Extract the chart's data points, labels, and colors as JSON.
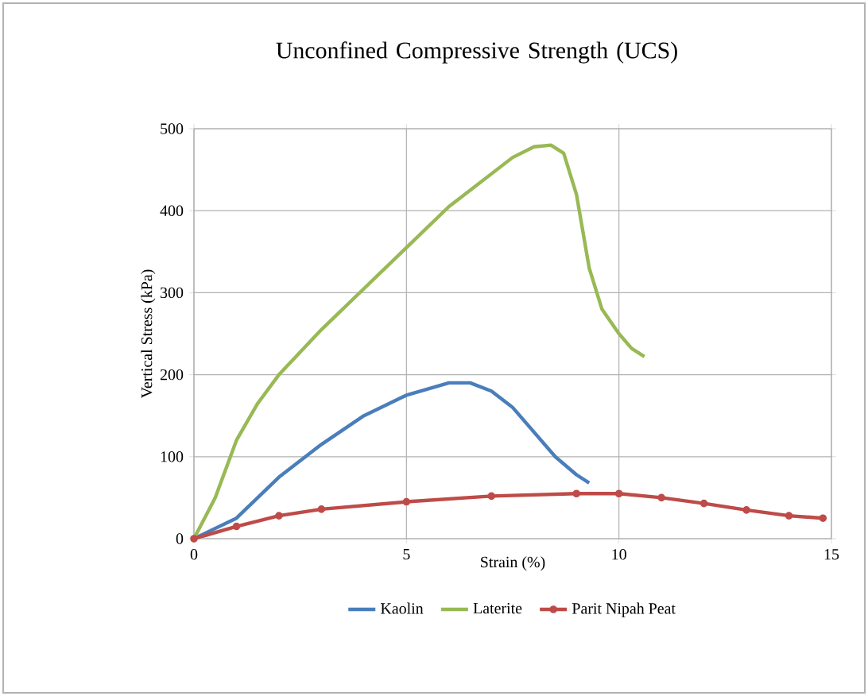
{
  "chart_data": {
    "type": "line",
    "title": "Unconfined Compressive Strength (UCS)",
    "xlabel": "Strain (%)",
    "ylabel": "Vertical Stress (kPa)",
    "xlim": [
      0,
      15
    ],
    "ylim": [
      0,
      500
    ],
    "xticks": [
      0,
      5,
      10,
      15
    ],
    "yticks": [
      0,
      100,
      200,
      300,
      400,
      500
    ],
    "grid": true,
    "legend": "bottom",
    "line_style": "solid",
    "series": [
      {
        "name": "Kaolin",
        "color": "#4a7ebb",
        "x": [
          0,
          1,
          2,
          3,
          4,
          5,
          6,
          6.5,
          7,
          7.5,
          8,
          8.5,
          9,
          9.3
        ],
        "values": [
          0,
          25,
          75,
          115,
          150,
          175,
          190,
          190,
          180,
          160,
          130,
          100,
          78,
          68
        ]
      },
      {
        "name": "Laterite",
        "color": "#98b954",
        "x": [
          0,
          0.5,
          1,
          1.5,
          2,
          3,
          4,
          5,
          6,
          7,
          7.5,
          8,
          8.4,
          8.7,
          9,
          9.3,
          9.6,
          10,
          10.3,
          10.6
        ],
        "values": [
          0,
          50,
          120,
          165,
          200,
          255,
          305,
          355,
          405,
          445,
          465,
          478,
          480,
          470,
          420,
          330,
          280,
          250,
          232,
          222
        ]
      },
      {
        "name": "Parit Nipah Peat",
        "color": "#be4b48",
        "marker": "circle",
        "x": [
          0,
          1,
          2,
          3,
          5,
          7,
          9,
          10,
          11,
          12,
          13,
          14,
          14.8
        ],
        "values": [
          0,
          15,
          28,
          36,
          45,
          52,
          55,
          55,
          50,
          43,
          35,
          28,
          25
        ]
      }
    ]
  }
}
